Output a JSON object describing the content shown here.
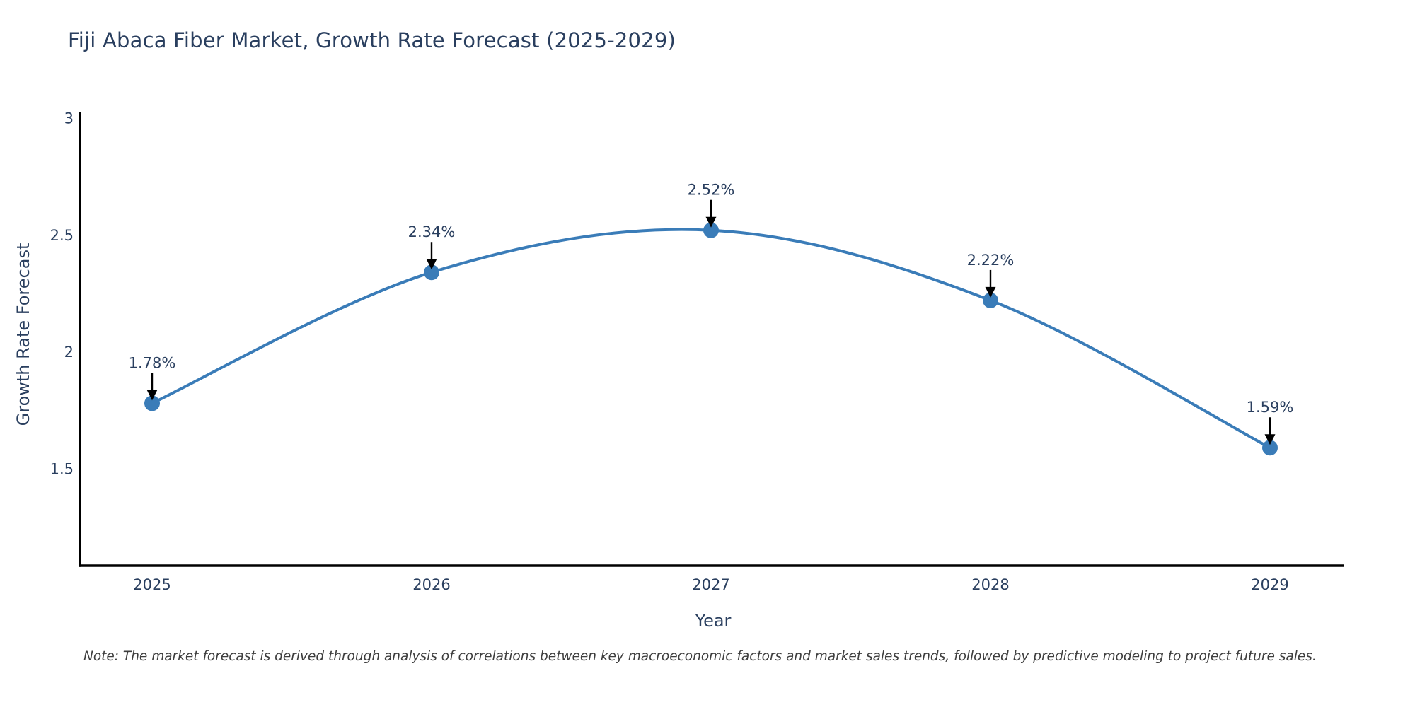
{
  "chart_data": {
    "type": "line",
    "title": "Fiji Abaca Fiber Market, Growth Rate Forecast (2025-2029)",
    "xlabel": "Year",
    "ylabel": "Growth Rate Forecast",
    "categories": [
      "2025",
      "2026",
      "2027",
      "2028",
      "2029"
    ],
    "series": [
      {
        "name": "Growth Rate Forecast",
        "values": [
          1.78,
          2.34,
          2.52,
          2.22,
          1.59
        ]
      }
    ],
    "point_labels": [
      "1.78%",
      "2.34%",
      "2.52%",
      "2.22%",
      "1.59%"
    ],
    "ytick_values": [
      1.5,
      2,
      2.5,
      3
    ],
    "ytick_labels": [
      "1.5",
      "2",
      "2.5",
      "3"
    ],
    "ylim": [
      1.09,
      3.02
    ],
    "line_shape": "spline",
    "grid": false,
    "legend_position": "none",
    "annotation_style": "label-with-down-arrow",
    "colors": {
      "line": "#3A7CB8",
      "marker": "#3A7CB8",
      "axis": "#000000",
      "text": "#2a3f5f",
      "arrow": "#000000",
      "note": "#3d3d3d",
      "background": "#ffffff"
    },
    "note": "Note: The market forecast is derived through analysis of correlations between key macroeconomic factors and market sales trends, followed by predictive modeling to project future sales."
  }
}
